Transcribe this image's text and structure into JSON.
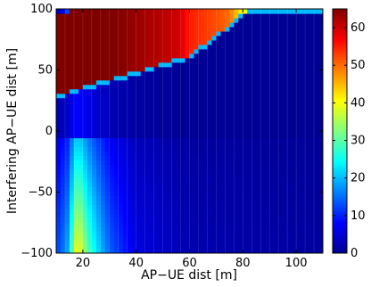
{
  "chart_data": {
    "type": "heatmap",
    "xlabel": "AP−UE dist [m]",
    "ylabel": "Interfering AP−UE dist [m]",
    "xlim": [
      10,
      110
    ],
    "ylim": [
      -100,
      100
    ],
    "x_ticks": [
      20,
      40,
      60,
      80,
      100
    ],
    "y_ticks": [
      -100,
      -50,
      0,
      50,
      100
    ],
    "x_tick_labels": [
      "20",
      "40",
      "60",
      "80",
      "100"
    ],
    "y_tick_labels": [
      "−100",
      "−50",
      "0",
      "50",
      "100"
    ],
    "colorbar": {
      "range": [
        0,
        65
      ],
      "ticks": [
        0,
        10,
        20,
        30,
        40,
        50,
        60
      ],
      "tick_labels": [
        "0",
        "10",
        "20",
        "30",
        "40",
        "50",
        "60"
      ],
      "colormap": "jet"
    },
    "colormap_stops": [
      {
        "t": 0.0,
        "color": "#00008f"
      },
      {
        "t": 0.125,
        "color": "#0000ff"
      },
      {
        "t": 0.375,
        "color": "#00ffff"
      },
      {
        "t": 0.625,
        "color": "#ffff00"
      },
      {
        "t": 0.875,
        "color": "#ff0000"
      },
      {
        "t": 1.0,
        "color": "#800000"
      }
    ],
    "regions": [
      {
        "name": "upper-band",
        "lower_boundary": [
          [
            10,
            30
          ],
          [
            60,
            62
          ],
          [
            82,
            100
          ]
        ],
        "upper_boundary": [
          [
            10,
            95
          ],
          [
            18,
            100
          ]
        ],
        "value_profile": [
          [
            10,
            65
          ],
          [
            24,
            65
          ],
          [
            32,
            65
          ],
          [
            56,
            60
          ],
          [
            60,
            55
          ],
          [
            70,
            52
          ],
          [
            75,
            50
          ],
          [
            80,
            40
          ],
          [
            85,
            35
          ],
          [
            90,
            30
          ],
          [
            100,
            26
          ],
          [
            110,
            24
          ]
        ]
      },
      {
        "name": "upper-wedge-edge",
        "value_profile": [
          [
            10,
            2
          ],
          [
            12,
            6
          ],
          [
            14,
            12
          ],
          [
            16,
            18
          ],
          [
            18,
            25
          ],
          [
            20,
            35
          ],
          [
            22,
            45
          ],
          [
            24,
            55
          ],
          [
            26,
            63
          ],
          [
            28,
            65
          ]
        ]
      },
      {
        "name": "lower-region",
        "value_profile": [
          [
            10,
            10
          ],
          [
            14,
            15
          ],
          [
            18,
            35
          ],
          [
            22,
            25
          ],
          [
            26,
            18
          ],
          [
            30,
            12
          ],
          [
            40,
            5
          ],
          [
            60,
            2
          ],
          [
            110,
            1
          ]
        ]
      }
    ],
    "grid": true,
    "legend": "none"
  }
}
